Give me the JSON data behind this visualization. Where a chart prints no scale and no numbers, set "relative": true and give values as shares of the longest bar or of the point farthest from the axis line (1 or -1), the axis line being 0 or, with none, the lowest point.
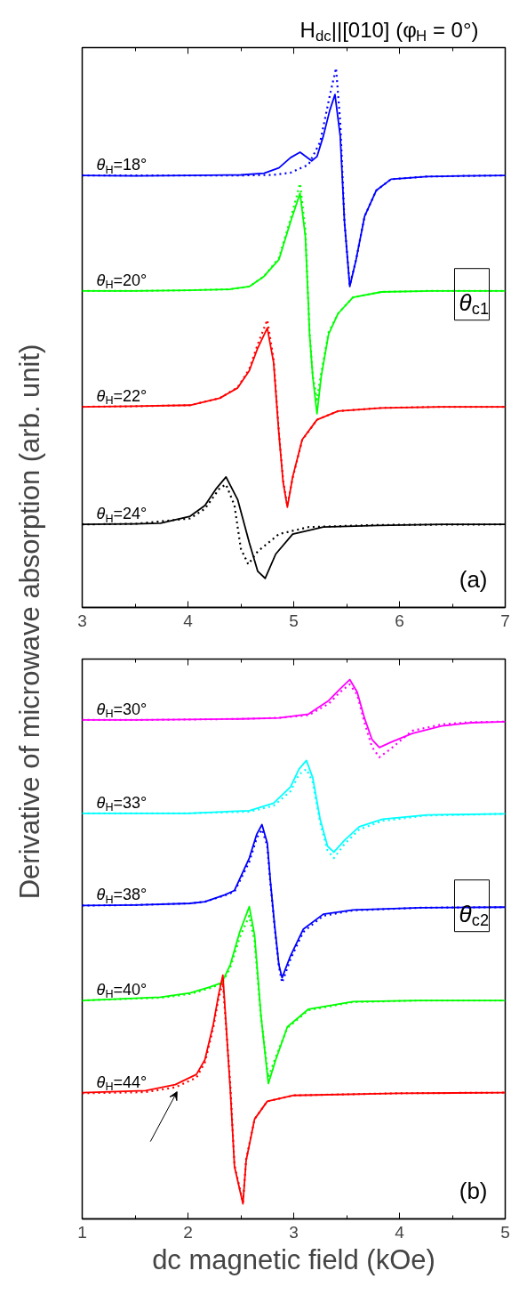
{
  "chart_data": [
    {
      "type": "line",
      "relative": true,
      "title": "H$_{dc}$||[010] (φ$_{H}$ = 0°)",
      "ylabel": "Derivative of microwave absorption (arb. unit)",
      "xlim": [
        3,
        7
      ],
      "xticks": [
        3,
        {
          "value": 3.5,
          "label": null
        },
        4,
        {
          "value": 4.5,
          "label": null
        },
        5,
        {
          "value": 5.5,
          "label": null
        },
        6,
        {
          "value": 6.5,
          "label": null
        },
        7
      ],
      "annotations": [
        "θ$_{c1}$",
        "(a)"
      ],
      "series": [
        {
          "name": "θ$_{H}$=18°",
          "color": "#0000ff",
          "line_style": "solid",
          "x": [
            3,
            3.5,
            4,
            4.5,
            4.72,
            4.86,
            4.97,
            5.06,
            5.17,
            5.22,
            5.28,
            5.34,
            5.39,
            5.44,
            5.48,
            5.53,
            5.59,
            5.67,
            5.78,
            5.92,
            6.26,
            6.6,
            7
          ],
          "values": [
            0.801,
            0.8,
            0.801,
            0.802,
            0.805,
            0.815,
            0.834,
            0.844,
            0.828,
            0.836,
            0.874,
            0.921,
            0.951,
            0.874,
            0.715,
            0.595,
            0.645,
            0.725,
            0.773,
            0.794,
            0.799,
            0.8,
            0.801
          ]
        },
        {
          "color": "#0000ff",
          "line_style": "dotted",
          "x": [
            3,
            3.5,
            4,
            4.5,
            4.8,
            4.97,
            5.14,
            5.25,
            5.34,
            5.4,
            5.44,
            5.48,
            5.53,
            5.59,
            5.67,
            5.78,
            5.92,
            6.26,
            6.6,
            7
          ],
          "values": [
            0.801,
            0.801,
            0.801,
            0.801,
            0.802,
            0.806,
            0.821,
            0.863,
            0.948,
            1.0,
            0.9,
            0.715,
            0.597,
            0.645,
            0.725,
            0.773,
            0.794,
            0.799,
            0.8,
            0.801
          ]
        },
        {
          "name": "θ$_{H}$=20°",
          "color": "#00ff00",
          "line_style": "solid",
          "x": [
            3,
            3.5,
            4,
            4.4,
            4.58,
            4.72,
            4.86,
            4.97,
            5.06,
            5.11,
            5.14,
            5.15,
            5.18,
            5.22,
            5.26,
            5.33,
            5.42,
            5.56,
            5.83,
            6.3,
            7
          ],
          "values": [
            0.587,
            0.587,
            0.588,
            0.59,
            0.595,
            0.614,
            0.645,
            0.715,
            0.768,
            0.688,
            0.556,
            0.507,
            0.428,
            0.359,
            0.428,
            0.507,
            0.545,
            0.575,
            0.585,
            0.587,
            0.587
          ]
        },
        {
          "color": "#00ff00",
          "line_style": "dotted",
          "x": [
            3,
            3.5,
            4,
            4.4,
            4.58,
            4.72,
            4.86,
            4.97,
            5.06,
            5.11,
            5.14,
            5.15,
            5.18,
            5.22,
            5.26,
            5.33,
            5.42,
            5.56,
            5.83,
            6.3,
            7
          ],
          "values": [
            0.587,
            0.587,
            0.588,
            0.59,
            0.595,
            0.614,
            0.648,
            0.72,
            0.786,
            0.7,
            0.56,
            0.51,
            0.43,
            0.385,
            0.435,
            0.51,
            0.545,
            0.575,
            0.585,
            0.587,
            0.587
          ]
        },
        {
          "name": "θ$_{H}$=22°",
          "color": "#ff0000",
          "line_style": "solid",
          "x": [
            3,
            3.5,
            4.02,
            4.3,
            4.47,
            4.58,
            4.66,
            4.75,
            4.81,
            4.86,
            4.9,
            4.94,
            4.99,
            5.08,
            5.22,
            5.42,
            5.83,
            6.4,
            7
          ],
          "values": [
            0.372,
            0.373,
            0.375,
            0.388,
            0.407,
            0.439,
            0.481,
            0.518,
            0.454,
            0.322,
            0.232,
            0.186,
            0.242,
            0.311,
            0.348,
            0.364,
            0.37,
            0.372,
            0.372
          ]
        },
        {
          "color": "#ff0000",
          "line_style": "dotted",
          "x": [
            3,
            3.5,
            4.02,
            4.3,
            4.47,
            4.58,
            4.66,
            4.75,
            4.81,
            4.86,
            4.9,
            4.94,
            4.99,
            5.08,
            5.22,
            5.42,
            5.83,
            6.4,
            7
          ],
          "values": [
            0.372,
            0.373,
            0.375,
            0.388,
            0.408,
            0.442,
            0.488,
            0.533,
            0.46,
            0.325,
            0.235,
            0.189,
            0.24,
            0.31,
            0.348,
            0.364,
            0.37,
            0.372,
            0.372
          ]
        },
        {
          "name": "θ$_{H}$=24°",
          "color": "#000000",
          "line_style": "solid",
          "x": [
            3,
            3.5,
            3.74,
            4.02,
            4.16,
            4.27,
            4.36,
            4.47,
            4.58,
            4.66,
            4.73,
            4.83,
            4.99,
            5.28,
            5.8,
            6.4,
            7
          ],
          "values": [
            0.154,
            0.155,
            0.156,
            0.169,
            0.189,
            0.221,
            0.242,
            0.2,
            0.12,
            0.067,
            0.054,
            0.099,
            0.136,
            0.149,
            0.152,
            0.154,
            0.154
          ]
        },
        {
          "color": "#000000",
          "line_style": "dotted",
          "x": [
            3,
            3.5,
            4.02,
            4.16,
            4.3,
            4.36,
            4.44,
            4.5,
            4.57,
            4.66,
            4.86,
            5.14,
            5.8,
            7
          ],
          "values": [
            0.154,
            0.155,
            0.165,
            0.183,
            0.221,
            0.228,
            0.189,
            0.109,
            0.08,
            0.104,
            0.136,
            0.149,
            0.153,
            0.154
          ]
        }
      ]
    },
    {
      "type": "line",
      "relative": true,
      "xlabel": "dc magnetic field (kOe)",
      "xlim": [
        1,
        5
      ],
      "xticks": [
        1,
        {
          "value": 1.5,
          "label": null
        },
        2,
        {
          "value": 2.5,
          "label": null
        },
        3,
        {
          "value": 3.5,
          "label": null
        },
        4,
        {
          "value": 4.5,
          "label": null
        },
        5
      ],
      "annotations": [
        "θ$_{c2}$",
        "(b)"
      ],
      "series": [
        {
          "name": "θ$_{H}$=30°",
          "color": "#ff00ff",
          "line_style": "solid",
          "x": [
            1,
            1.5,
            2,
            2.5,
            2.86,
            3.14,
            3.33,
            3.44,
            3.53,
            3.6,
            3.67,
            3.74,
            3.81,
            3.92,
            4.12,
            4.4,
            4.68,
            5
          ],
          "values": [
            0.925,
            0.925,
            0.926,
            0.927,
            0.929,
            0.936,
            0.961,
            0.983,
            1.0,
            0.977,
            0.928,
            0.889,
            0.874,
            0.884,
            0.9,
            0.914,
            0.92,
            0.922
          ]
        },
        {
          "color": "#ff00ff",
          "line_style": "dotted",
          "x": [
            1,
            1.5,
            2,
            2.5,
            2.86,
            3.14,
            3.33,
            3.44,
            3.53,
            3.6,
            3.67,
            3.74,
            3.81,
            3.92,
            4.12,
            4.4,
            4.68,
            5
          ],
          "values": [
            0.925,
            0.925,
            0.926,
            0.927,
            0.929,
            0.934,
            0.955,
            0.977,
            0.991,
            0.972,
            0.92,
            0.875,
            0.856,
            0.872,
            0.905,
            0.917,
            0.921,
            0.922
          ]
        },
        {
          "name": "θ$_{H}$=33°",
          "color": "#00ffff",
          "line_style": "solid",
          "x": [
            1,
            1.5,
            2,
            2.58,
            2.81,
            2.97,
            3.05,
            3.12,
            3.18,
            3.25,
            3.32,
            3.38,
            3.48,
            3.62,
            3.84,
            4.26,
            5
          ],
          "values": [
            0.752,
            0.752,
            0.752,
            0.757,
            0.771,
            0.801,
            0.834,
            0.85,
            0.818,
            0.741,
            0.691,
            0.68,
            0.702,
            0.727,
            0.741,
            0.749,
            0.751
          ]
        },
        {
          "color": "#00ffff",
          "line_style": "dotted",
          "x": [
            1,
            1.5,
            2,
            2.58,
            2.81,
            2.97,
            3.05,
            3.12,
            3.18,
            3.25,
            3.32,
            3.38,
            3.48,
            3.62,
            3.84,
            4.26,
            5
          ],
          "values": [
            0.752,
            0.752,
            0.752,
            0.755,
            0.766,
            0.793,
            0.824,
            0.834,
            0.81,
            0.735,
            0.683,
            0.669,
            0.695,
            0.722,
            0.738,
            0.748,
            0.751
          ]
        },
        {
          "name": "θ$_{H}$=38°",
          "color": "#0000ff",
          "line_style": "solid",
          "x": [
            1,
            1.5,
            2.02,
            2.16,
            2.35,
            2.44,
            2.58,
            2.65,
            2.7,
            2.75,
            2.78,
            2.82,
            2.86,
            2.89,
            2.97,
            3.09,
            3.28,
            3.56,
            4.2,
            5
          ],
          "values": [
            0.581,
            0.582,
            0.585,
            0.588,
            0.601,
            0.609,
            0.669,
            0.713,
            0.731,
            0.697,
            0.625,
            0.543,
            0.471,
            0.447,
            0.488,
            0.537,
            0.565,
            0.573,
            0.577,
            0.578
          ]
        },
        {
          "color": "#0000ff",
          "line_style": "dotted",
          "x": [
            1,
            1.5,
            2.02,
            2.16,
            2.35,
            2.44,
            2.58,
            2.65,
            2.7,
            2.75,
            2.78,
            2.82,
            2.86,
            2.89,
            2.97,
            3.09,
            3.28,
            3.56,
            4.2,
            5
          ],
          "values": [
            0.581,
            0.582,
            0.585,
            0.588,
            0.6,
            0.607,
            0.662,
            0.706,
            0.722,
            0.692,
            0.622,
            0.54,
            0.468,
            0.438,
            0.482,
            0.532,
            0.562,
            0.572,
            0.577,
            0.578
          ]
        },
        {
          "name": "θ$_{H}$=40°",
          "color": "#00ff00",
          "line_style": "solid",
          "x": [
            1,
            1.74,
            2.02,
            2.21,
            2.32,
            2.4,
            2.49,
            2.58,
            2.63,
            2.69,
            2.76,
            2.83,
            2.94,
            3.14,
            3.56,
            4.2,
            5
          ],
          "values": [
            0.405,
            0.411,
            0.419,
            0.43,
            0.438,
            0.471,
            0.532,
            0.579,
            0.526,
            0.378,
            0.251,
            0.295,
            0.356,
            0.389,
            0.403,
            0.405,
            0.405
          ]
        },
        {
          "color": "#00ff00",
          "line_style": "dotted",
          "x": [
            1,
            1.74,
            2.02,
            2.21,
            2.32,
            2.4,
            2.49,
            2.58,
            2.63,
            2.69,
            2.76,
            2.83,
            2.94,
            3.14,
            3.56,
            4.2,
            5
          ],
          "values": [
            0.405,
            0.41,
            0.417,
            0.428,
            0.436,
            0.466,
            0.522,
            0.562,
            0.515,
            0.375,
            0.262,
            0.3,
            0.354,
            0.387,
            0.402,
            0.405,
            0.405
          ]
        },
        {
          "name": "θ$_{H}$=44°",
          "color": "#ff0000",
          "line_style": "solid",
          "x": [
            1,
            1.6,
            1.88,
            2.08,
            2.16,
            2.24,
            2.29,
            2.33,
            2.4,
            2.44,
            2.52,
            2.55,
            2.63,
            2.75,
            3.0,
            4,
            5
          ],
          "values": [
            0.234,
            0.238,
            0.249,
            0.268,
            0.295,
            0.361,
            0.416,
            0.452,
            0.241,
            0.097,
            0.028,
            0.108,
            0.185,
            0.218,
            0.229,
            0.233,
            0.234
          ]
        },
        {
          "color": "#ff0000",
          "line_style": "dotted",
          "x": [
            1,
            1.6,
            1.88,
            2.08,
            2.16,
            2.24,
            2.29,
            2.33,
            2.4,
            2.44,
            2.52,
            2.55,
            2.63,
            2.75,
            3.0,
            4,
            5
          ],
          "values": [
            0.233,
            0.235,
            0.244,
            0.262,
            0.29,
            0.355,
            0.41,
            0.438,
            0.25,
            0.1,
            0.03,
            0.11,
            0.185,
            0.218,
            0.229,
            0.233,
            0.234
          ]
        }
      ]
    }
  ]
}
